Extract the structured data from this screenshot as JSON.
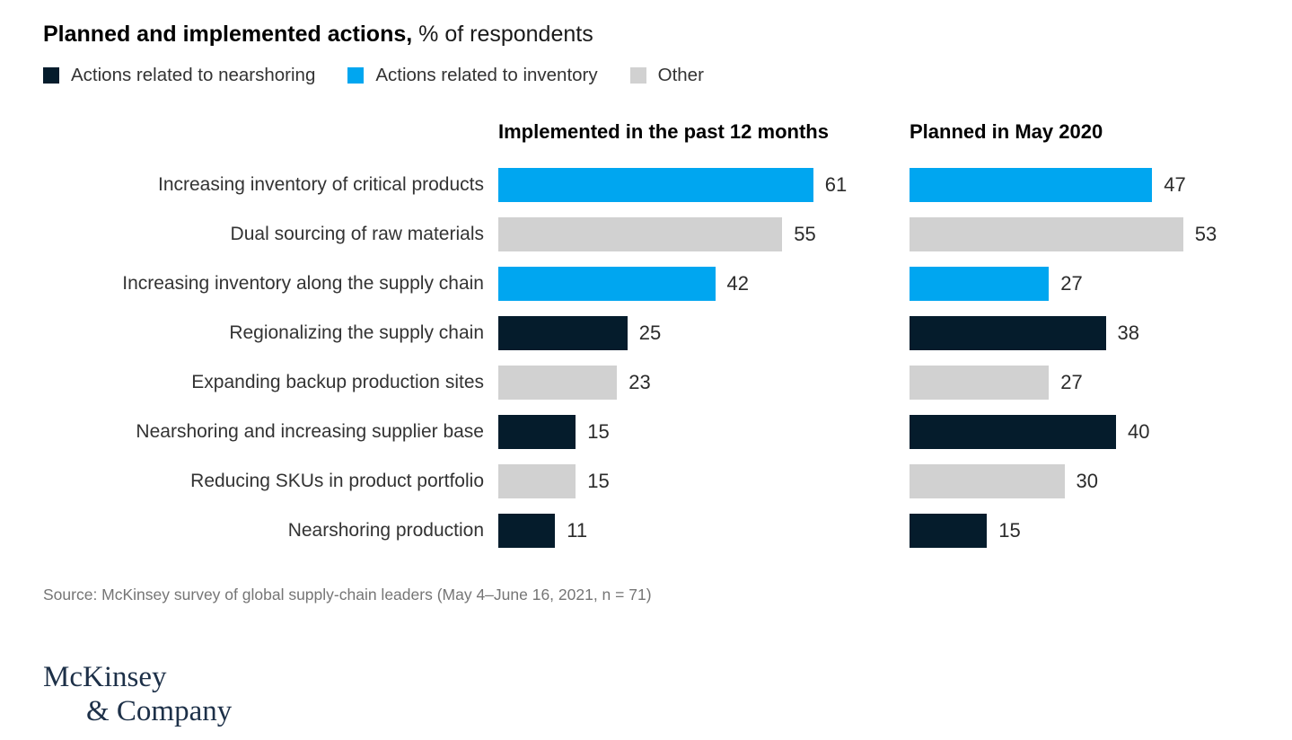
{
  "title": {
    "bold": "Planned and implemented actions,",
    "rest": " % of respondents"
  },
  "legend": [
    {
      "label": "Actions related to nearshoring",
      "color": "#051C2C"
    },
    {
      "label": "Actions related to inventory",
      "color": "#00A6F0"
    },
    {
      "label": "Other",
      "color": "#D1D1D1"
    }
  ],
  "columns": [
    "Implemented in the past 12 months",
    "Planned in May 2020"
  ],
  "chart_data": {
    "type": "bar",
    "orientation": "horizontal",
    "title": "Planned and implemented actions, % of respondents",
    "xlim": [
      0,
      80
    ],
    "grid": false,
    "legend_position": "top",
    "categories": [
      "Increasing inventory of critical products",
      "Dual sourcing of raw materials",
      "Increasing inventory along the supply chain",
      "Regionalizing the supply chain",
      "Expanding backup production sites",
      "Nearshoring and increasing supplier base",
      "Reducing SKUs in product portfolio",
      "Nearshoring production"
    ],
    "category_groups": [
      "inventory",
      "other",
      "inventory",
      "nearshoring",
      "other",
      "nearshoring",
      "other",
      "nearshoring"
    ],
    "group_colors": {
      "nearshoring": "#051C2C",
      "inventory": "#00A6F0",
      "other": "#D1D1D1"
    },
    "series": [
      {
        "name": "Implemented in the past 12 months",
        "values": [
          61,
          55,
          42,
          25,
          23,
          15,
          15,
          11
        ]
      },
      {
        "name": "Planned in May 2020",
        "values": [
          47,
          53,
          27,
          38,
          27,
          40,
          30,
          15
        ]
      }
    ]
  },
  "source": "Source: McKinsey survey of global supply-chain leaders (May 4–June 16, 2021, n = 71)",
  "logo": {
    "line1": "McKinsey",
    "line2": "& Company"
  }
}
